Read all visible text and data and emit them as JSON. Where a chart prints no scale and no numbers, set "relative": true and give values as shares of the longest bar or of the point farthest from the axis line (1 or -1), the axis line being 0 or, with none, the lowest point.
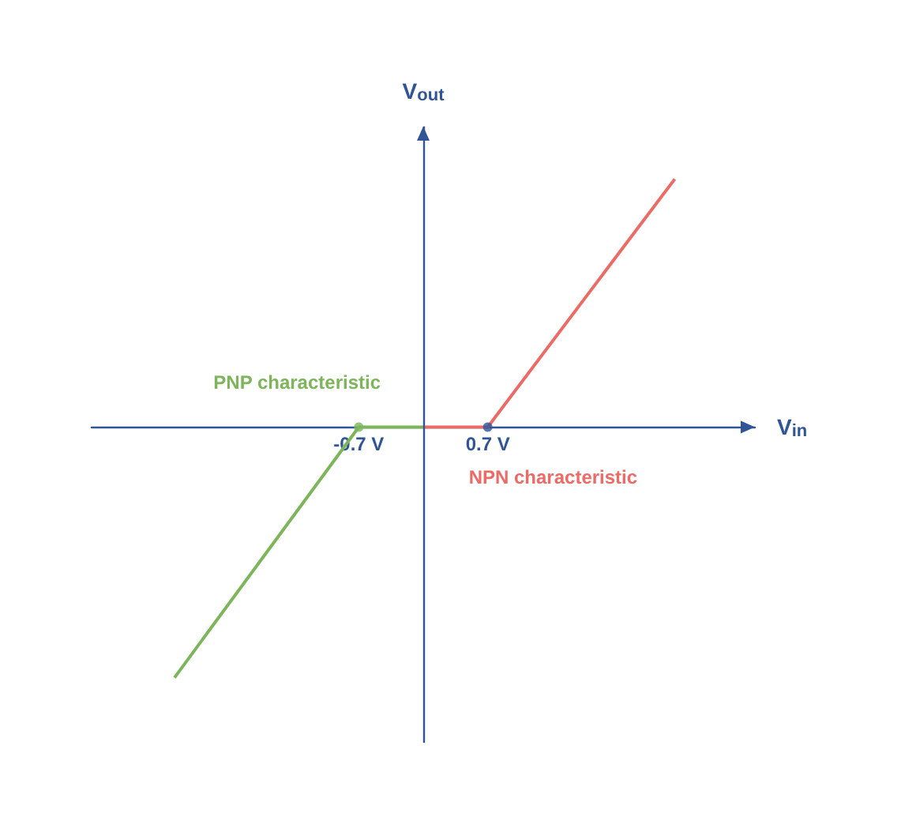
{
  "chart_data": {
    "type": "line",
    "xlabel": "V$_{in}$",
    "ylabel": "V$_{out}$",
    "relative": true,
    "xlim": [
      -3.6,
      3.6
    ],
    "xticks": [
      {
        "value": -0.7,
        "label": "-0.7 V"
      },
      {
        "value": 0.7,
        "label": "0.7 V"
      }
    ],
    "grid": false,
    "legend": false,
    "ref_lines": [
      {
        "axis": "x",
        "value": 0,
        "color": "#2f5597"
      }
    ],
    "series": [
      {
        "name": "PNP characteristic",
        "color": "#7cb55a",
        "x": [
          -2.7,
          -0.7,
          0
        ],
        "values": [
          -1,
          0,
          0
        ]
      },
      {
        "name": "NPN characteristic",
        "color": "#ec6b67",
        "x": [
          0,
          0.7,
          2.73
        ],
        "values": [
          0,
          0,
          0.99
        ]
      },
      {
        "type": "scatter",
        "x": [
          -0.7,
          0.7
        ],
        "values": [
          0,
          0
        ],
        "colors": [
          "#7cb55a",
          "#2f5597"
        ]
      }
    ]
  }
}
